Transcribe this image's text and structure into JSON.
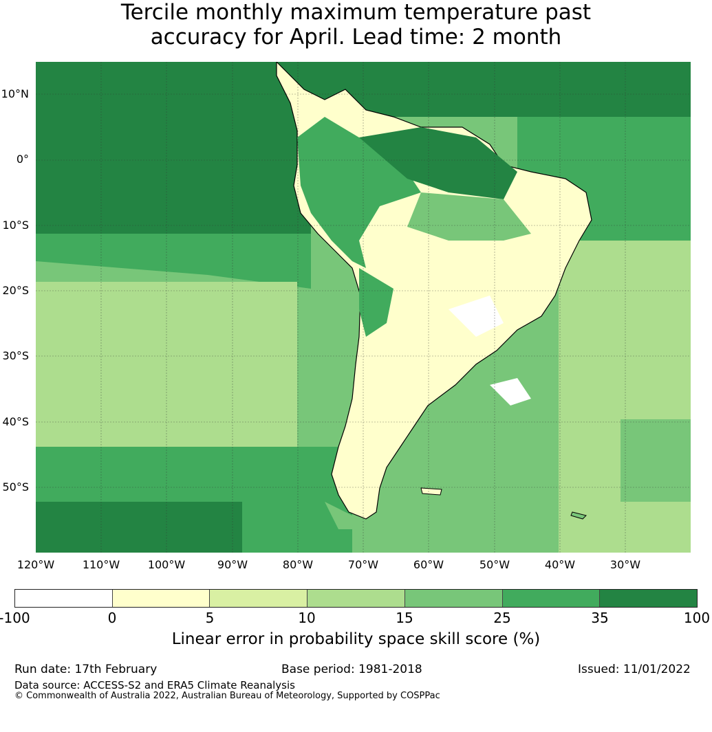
{
  "title": {
    "line1": "Tercile monthly maximum temperature past",
    "line2": "accuracy for April. Lead time: 2 month"
  },
  "map": {
    "lat_labels": [
      "10°N",
      "0°",
      "10°S",
      "20°S",
      "30°S",
      "40°S",
      "50°S"
    ],
    "lon_labels": [
      "120°W",
      "110°W",
      "100°W",
      "90°W",
      "80°W",
      "70°W",
      "60°W",
      "50°W",
      "40°W",
      "30°W"
    ],
    "region": "South America",
    "ocean_color": "#41ab5d",
    "land_outline_color": "#000000"
  },
  "colorbar": {
    "ticks": [
      "-100",
      "0",
      "5",
      "10",
      "15",
      "25",
      "35",
      "100"
    ],
    "colors": [
      "#ffffff",
      "#ffffcc",
      "#d9f0a3",
      "#addd8e",
      "#78c679",
      "#41ab5d",
      "#238443"
    ],
    "label": "Linear error in probability space skill score (%)"
  },
  "footer": {
    "run_date": "Run date: 17th February",
    "base_period": "Base period: 1981-2018",
    "issued": "Issued: 11/01/2022",
    "data_source": "Data source: ACCESS-S2 and ERA5 Climate Reanalysis",
    "copyright": "© Commonwealth of Australia 2022, Australian Bureau of Meteorology, Supported by COSPPac"
  }
}
